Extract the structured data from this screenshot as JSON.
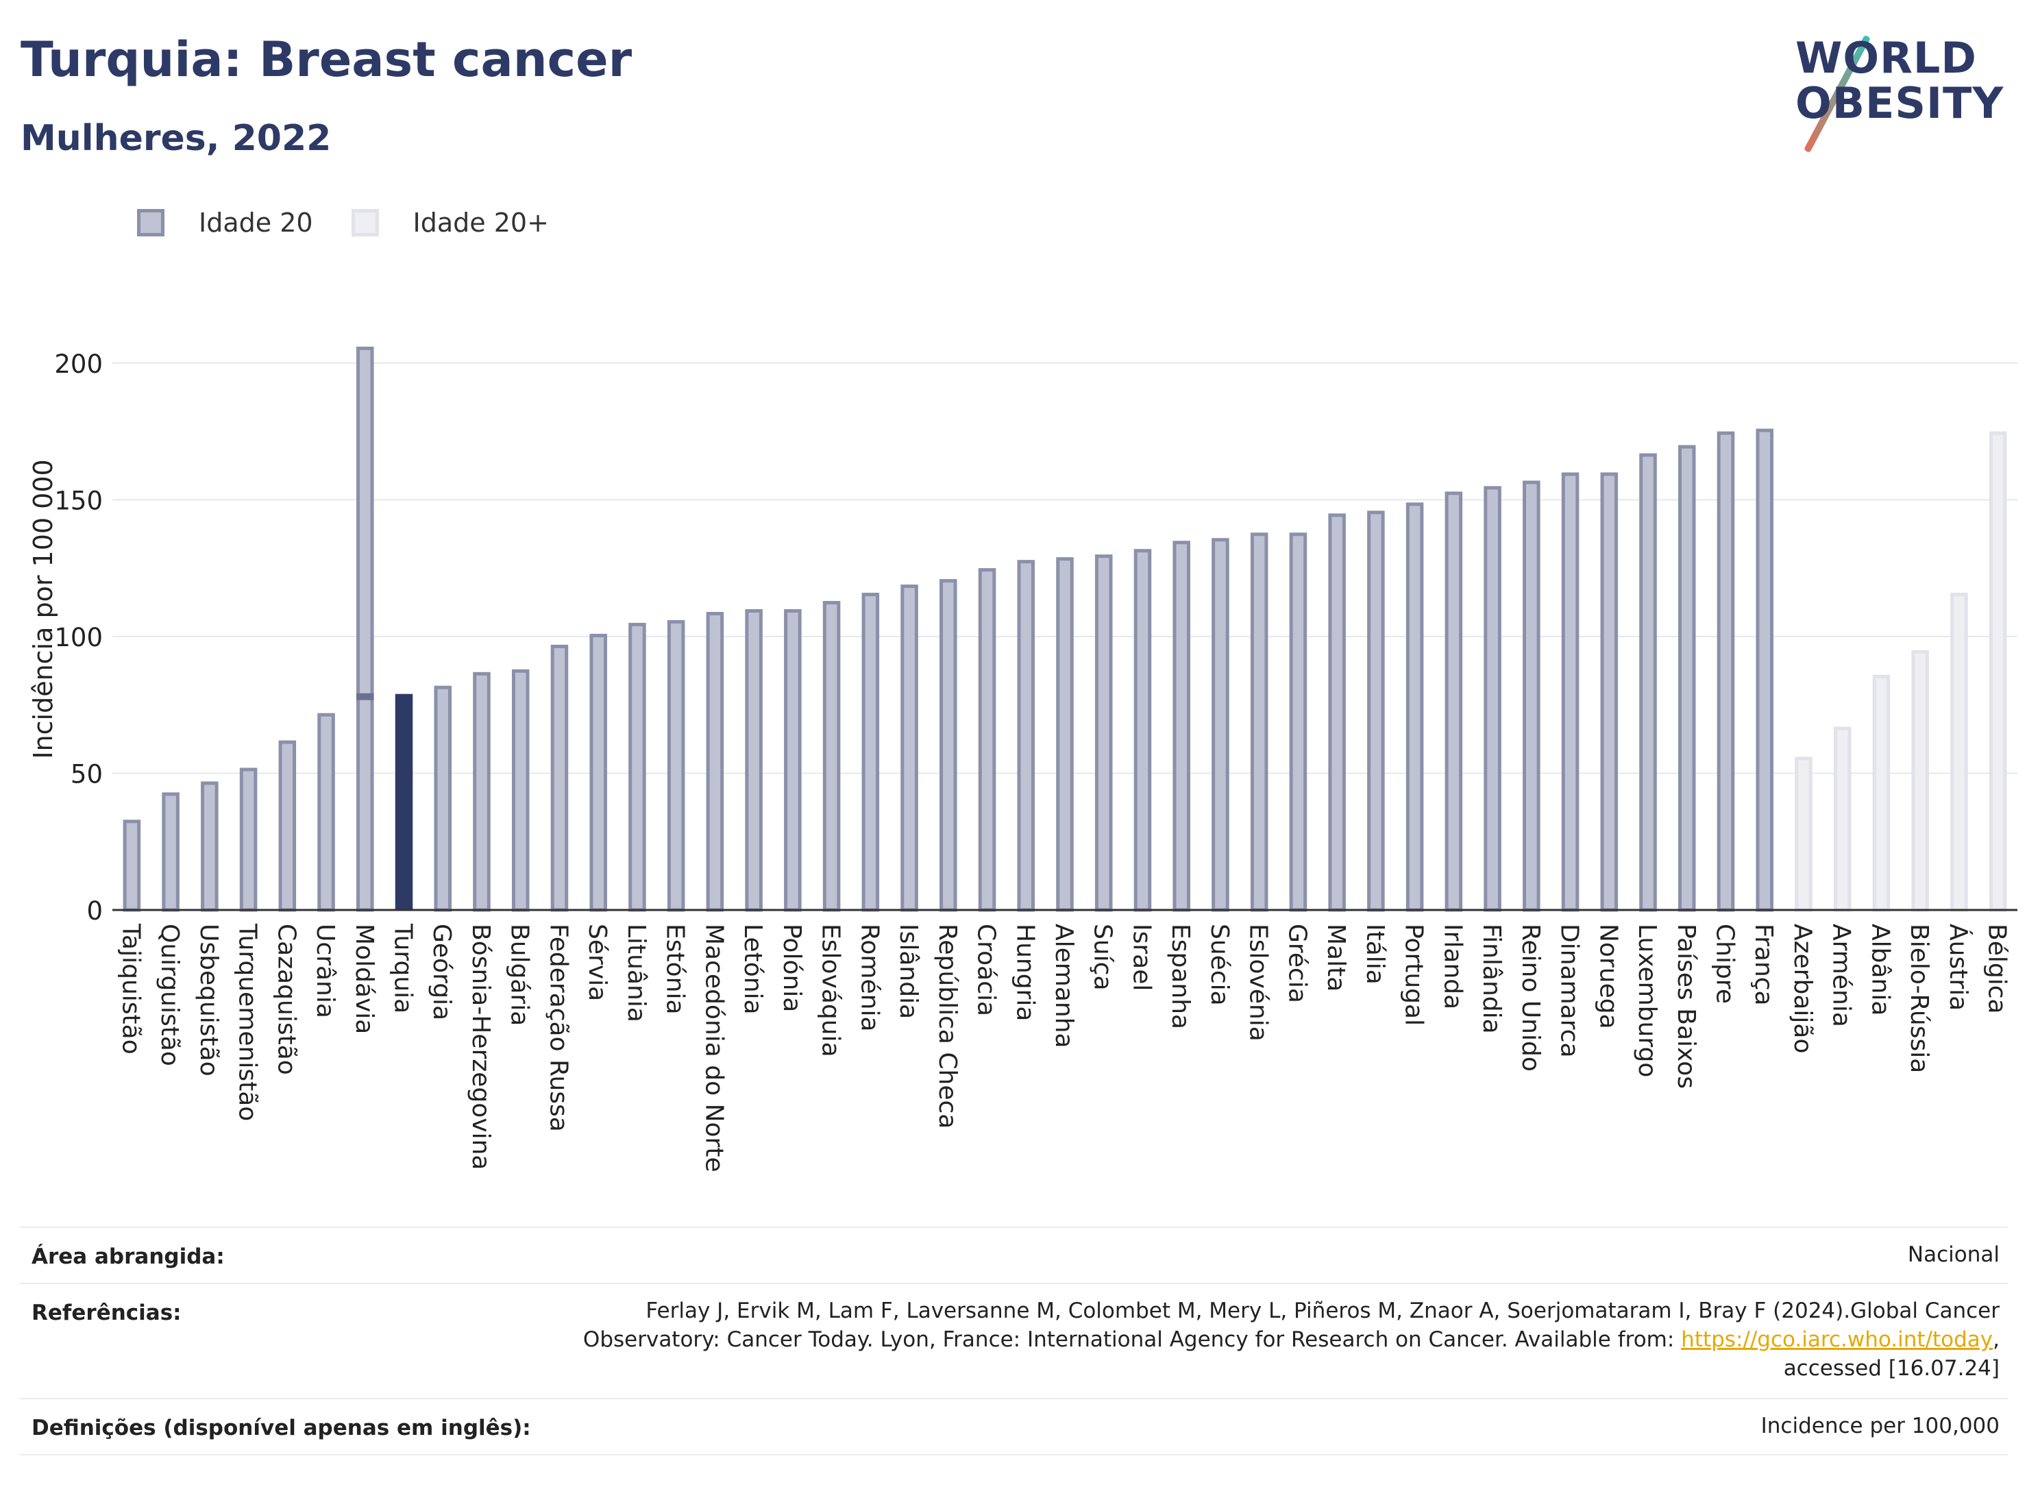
{
  "header": {
    "title": "Turquia: Breast cancer",
    "subtitle": "Mulheres, 2022",
    "logo_line1": "WORLD",
    "logo_line2": "OBESITY"
  },
  "legend": [
    {
      "label": "Idade 20",
      "color": "#8b90aa"
    },
    {
      "label": "Idade 20+",
      "color": "#e1e2ea"
    }
  ],
  "chart_data": {
    "type": "bar",
    "ylabel": "Incidência por 100 000",
    "ylim": [
      0,
      220
    ],
    "yticks": [
      0,
      50,
      100,
      150,
      200
    ],
    "grid": true,
    "legend_position": "top-left",
    "highlight": "Turquia",
    "categories": [
      "Tajiquistão",
      "Quirguistão",
      "Usbequistão",
      "Turquemenistão",
      "Cazaquistão",
      "Ucrânia",
      "Moldávia",
      "Turquia",
      "Geórgia",
      "Bósnia-Herzegovina",
      "Bulgária",
      "Federação Russa",
      "Sérvia",
      "Lituânia",
      "Estónia",
      "Macedónia do Norte",
      "Letónia",
      "Polónia",
      "Eslováquia",
      "Roménia",
      "Islândia",
      "República Checa",
      "Croácia",
      "Hungria",
      "Alemanha",
      "Suíça",
      "Israel",
      "Espanha",
      "Suécia",
      "Eslovénia",
      "Grécia",
      "Malta",
      "Itália",
      "Portugal",
      "Irlanda",
      "Finlândia",
      "Reino Unido",
      "Dinamarca",
      "Noruega",
      "Luxemburgo",
      "Países Baixos",
      "Chipre",
      "França",
      "Azerbaijão",
      "Arménia",
      "Albânia",
      "Bielo-Rússia",
      "Áustria",
      "Bélgica"
    ],
    "series": [
      {
        "name": "Idade 20",
        "values": [
          33,
          43,
          47,
          52,
          62,
          72,
          206,
          79,
          82,
          87,
          88,
          97,
          101,
          105,
          106,
          109,
          110,
          110,
          113,
          116,
          119,
          121,
          125,
          128,
          129,
          130,
          132,
          135,
          136,
          138,
          138,
          145,
          146,
          149,
          153,
          155,
          157,
          160,
          160,
          167,
          170,
          175,
          176,
          null,
          null,
          null,
          null,
          null,
          null
        ]
      },
      {
        "name": "Idade 20+",
        "values": [
          null,
          null,
          null,
          null,
          null,
          null,
          78,
          null,
          null,
          null,
          null,
          null,
          null,
          null,
          null,
          null,
          null,
          null,
          null,
          null,
          null,
          null,
          null,
          null,
          null,
          null,
          null,
          null,
          null,
          null,
          null,
          null,
          null,
          null,
          null,
          null,
          null,
          null,
          null,
          null,
          null,
          null,
          null,
          56,
          67,
          86,
          95,
          116,
          175
        ]
      }
    ],
    "colors": {
      "bar_fill": "#bfc2d2",
      "bar_stroke": "#8b90aa",
      "highlight": "#2d3a66",
      "light_fill": "#eeeef3",
      "light_stroke": "#e1e2ea"
    }
  },
  "footer": {
    "area_label": "Área abrangida:",
    "area_value": "Nacional",
    "ref_label": "Referências:",
    "ref_line1": "Ferlay J, Ervik M, Lam F, Laversanne M, Colombet M, Mery L, Piñeros M, Znaor A, Soerjomataram I, Bray F (2024).Global Cancer",
    "ref_line2_pre": "Observatory: Cancer Today. Lyon, France: International Agency for Research on Cancer. Available from: ",
    "ref_link": "https://gco.iarc.who.int/today",
    "ref_line2_post": ",",
    "ref_line3": "accessed [16.07.24]",
    "def_label": "Definições (disponível apenas em inglês):",
    "def_value": "Incidence per 100,000"
  }
}
